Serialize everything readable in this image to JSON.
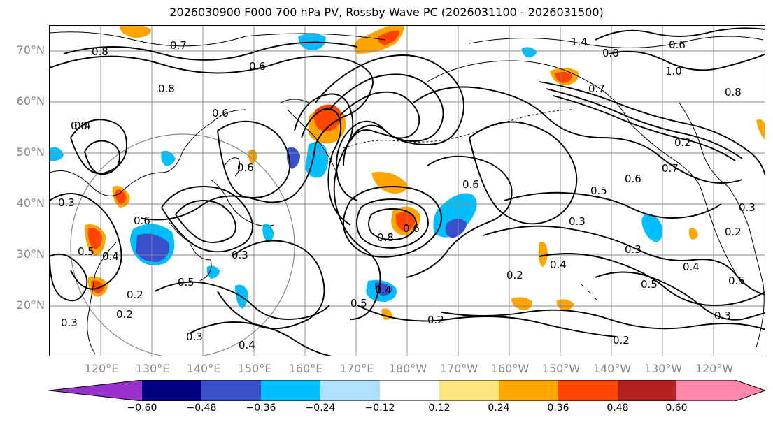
{
  "title": "2026030900 F000 700 hPa PV, Rossby Wave PC (2026031100 - 2026031500)",
  "lat_labels": [
    "70°N",
    "60°N",
    "50°N",
    "40°N",
    "30°N",
    "20°N"
  ],
  "lon_labels": [
    "120°E",
    "130°E",
    "140°E",
    "150°E",
    "160°E",
    "170°E",
    "180°W",
    "170°W",
    "160°W",
    "150°W",
    "140°W",
    "130°W",
    "120°W"
  ],
  "colorbar": {
    "ticks": [
      "−0.60",
      "−0.48",
      "−0.36",
      "−0.24",
      "−0.12",
      "0.12",
      "0.24",
      "0.36",
      "0.48",
      "0.60"
    ],
    "colors": [
      "#9932CC",
      "#000080",
      "#3A4FCC",
      "#00BFFF",
      "#B0E0FF",
      "#FFFFFF",
      "#FFE680",
      "#FFA500",
      "#FF4500",
      "#B22222",
      "#FF88AA"
    ]
  },
  "contour_labels": [
    "0.7",
    "0.8",
    "0.6",
    "1.4",
    "0.8",
    "0.6",
    "1.0",
    "0.8",
    "0.7",
    "0.8",
    "0.6",
    "0.4",
    "0.2",
    "0.7",
    "0.6",
    "0.5",
    "0.6",
    "0.8",
    "0.6",
    "0.5",
    "0.3",
    "0.6",
    "0.3",
    "0.8",
    "0.6",
    "0.4",
    "0.3",
    "0.5",
    "0.4",
    "0.2",
    "0.3",
    "0.4",
    "0.5",
    "0.4",
    "0.2",
    "0.3",
    "0.2",
    "0.2",
    "0.5",
    "0.4",
    "0.5",
    "0.3",
    "0.2",
    "0.3",
    "0.3",
    "0.2"
  ]
}
